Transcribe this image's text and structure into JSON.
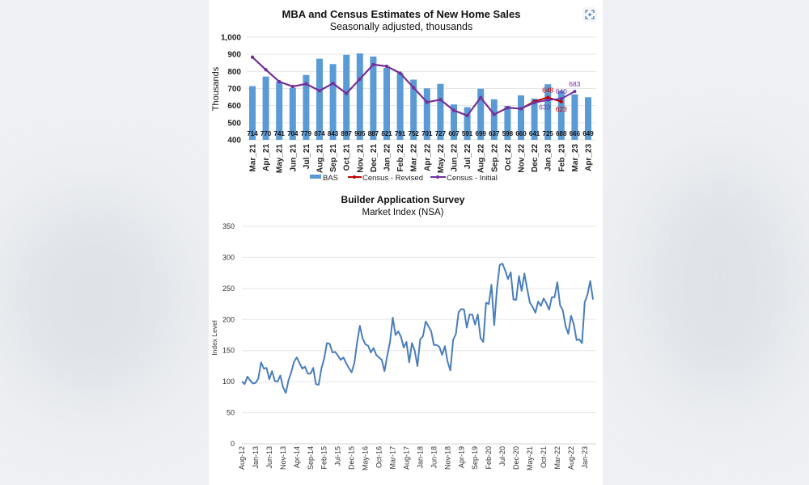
{
  "colors": {
    "bas": "#5b9bd5",
    "census_revised": "#c00000",
    "census_initial": "#7030a0",
    "line2": "#4a7ebb",
    "grid": "#e6e6e6"
  },
  "toolbar": {
    "lens_icon": "visual-search-icon"
  },
  "chart_data": [
    {
      "type": "bar",
      "title": "MBA and Census Estimates of New Home Sales",
      "subtitle": "Seasonally adjusted, thousands",
      "xlabel": "",
      "ylabel": "Thousands",
      "ylim": [
        400,
        1000
      ],
      "yticks": [
        "400",
        "500",
        "600",
        "700",
        "800",
        "900",
        "1,000"
      ],
      "grid": true,
      "legend": "bottom",
      "categories": [
        "Mar_21",
        "Apr_21",
        "May_21",
        "Jun_21",
        "Jul_21",
        "Aug_21",
        "Sep_21",
        "Oct_21",
        "Nov_21",
        "Dec_21",
        "Jan_22",
        "Feb_22",
        "Mar_22",
        "Apr_22",
        "May_22",
        "Jun_22",
        "Jul_22",
        "Aug_22",
        "Sep_22",
        "Oct_22",
        "Nov_22",
        "Dec_22",
        "Jan_23",
        "Feb_23",
        "Mar_23",
        "Apr_23"
      ],
      "series": [
        {
          "name": "BAS",
          "type": "bar",
          "values": [
            714,
            770,
            741,
            704,
            779,
            874,
            843,
            897,
            905,
            887,
            821,
            791,
            752,
            701,
            727,
            607,
            591,
            699,
            637,
            598,
            660,
            641,
            725,
            688,
            666,
            649
          ]
        },
        {
          "name": "Census - Revised",
          "type": "line",
          "values": [
            883,
            810,
            740,
            712,
            727,
            687,
            730,
            671,
            755,
            840,
            830,
            790,
            705,
            620,
            635,
            572,
            542,
            647,
            548,
            588,
            582,
            625,
            648,
            623,
            null,
            null
          ],
          "labels": {
            "22": "648",
            "23": "623"
          }
        },
        {
          "name": "Census - Initial",
          "type": "line",
          "values": [
            883,
            810,
            740,
            712,
            727,
            687,
            730,
            671,
            755,
            840,
            830,
            790,
            705,
            620,
            635,
            572,
            542,
            647,
            548,
            588,
            582,
            618,
            633,
            640,
            683,
            null
          ],
          "labels": {
            "22": "633",
            "23": "640",
            "24": "683"
          }
        }
      ]
    },
    {
      "type": "line",
      "title": "Builder Application Survey",
      "subtitle": "Market Index (NSA)",
      "xlabel": "",
      "ylabel": "Index Level",
      "ylim": [
        0,
        350
      ],
      "yticks": [
        "0",
        "50",
        "100",
        "150",
        "200",
        "250",
        "300",
        "350"
      ],
      "grid": true,
      "x_start": "Aug-12",
      "x_end": "Apr-23",
      "xticks": [
        "Aug-12",
        "Jan-13",
        "Jun-13",
        "Nov-13",
        "Apr-14",
        "Sep-14",
        "Feb-15",
        "Jul-15",
        "Dec-15",
        "May-16",
        "Oct-16",
        "Mar-17",
        "Aug-17",
        "Jan-18",
        "Jun-18",
        "Nov-18",
        "Apr-19",
        "Sep-19",
        "Feb-20",
        "Jul-20",
        "Dec-20",
        "May-21",
        "Oct-21",
        "Mar-22",
        "Aug-22",
        "Jan-23"
      ],
      "values": [
        100,
        96,
        108,
        102,
        97,
        98,
        105,
        131,
        121,
        122,
        104,
        117,
        101,
        100,
        110,
        91,
        82,
        102,
        115,
        132,
        139,
        130,
        121,
        124,
        113,
        113,
        122,
        96,
        95,
        121,
        137,
        162,
        161,
        147,
        148,
        142,
        135,
        139,
        130,
        122,
        115,
        130,
        163,
        190,
        170,
        160,
        158,
        147,
        154,
        143,
        139,
        135,
        117,
        142,
        164,
        203,
        175,
        181,
        172,
        155,
        164,
        131,
        162,
        150,
        125,
        168,
        173,
        197,
        189,
        181,
        159,
        159,
        156,
        143,
        157,
        132,
        118,
        167,
        177,
        212,
        217,
        216,
        187,
        208,
        208,
        192,
        208,
        170,
        164,
        227,
        225,
        256,
        191,
        250,
        288,
        290,
        279,
        265,
        276,
        232,
        232,
        270,
        246,
        274,
        250,
        227,
        220,
        211,
        229,
        222,
        234,
        226,
        216,
        236,
        236,
        260,
        223,
        215,
        189,
        177,
        206,
        192,
        167,
        168,
        162,
        228,
        240,
        262,
        232
      ]
    }
  ]
}
